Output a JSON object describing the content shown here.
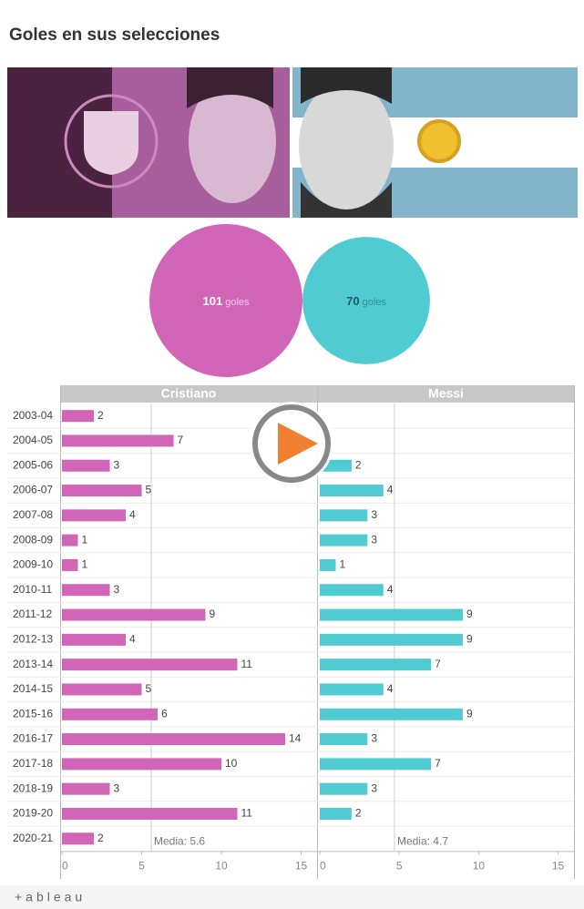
{
  "chart_data": {
    "type": "bar",
    "orientation": "horizontal",
    "title": "Goles en sus selecciones",
    "categories": [
      "2003-04",
      "2004-05",
      "2005-06",
      "2006-07",
      "2007-08",
      "2008-09",
      "2009-10",
      "2010-11",
      "2011-12",
      "2012-13",
      "2013-14",
      "2014-15",
      "2015-16",
      "2016-17",
      "2017-18",
      "2018-19",
      "2019-20",
      "2020-21"
    ],
    "series": [
      {
        "name": "Cristiano",
        "color": "#d166b8",
        "total": 101,
        "total_unit": "goles",
        "values": [
          2,
          7,
          3,
          5,
          4,
          1,
          1,
          3,
          9,
          4,
          11,
          5,
          6,
          14,
          10,
          3,
          11,
          2
        ],
        "reference": {
          "value": 5.6,
          "label": "Media: 5.6"
        }
      },
      {
        "name": "Messi",
        "color": "#50cbd2",
        "total": 70,
        "total_unit": "goles",
        "values": [
          null,
          null,
          2,
          4,
          3,
          3,
          1,
          4,
          9,
          9,
          7,
          4,
          9,
          3,
          7,
          3,
          2,
          null
        ],
        "reference": {
          "value": 4.7,
          "label": "Media: 4.7"
        }
      }
    ],
    "xlim": [
      0,
      16
    ],
    "xticks": [
      0,
      5,
      10,
      15
    ],
    "footer": "+ableau"
  }
}
